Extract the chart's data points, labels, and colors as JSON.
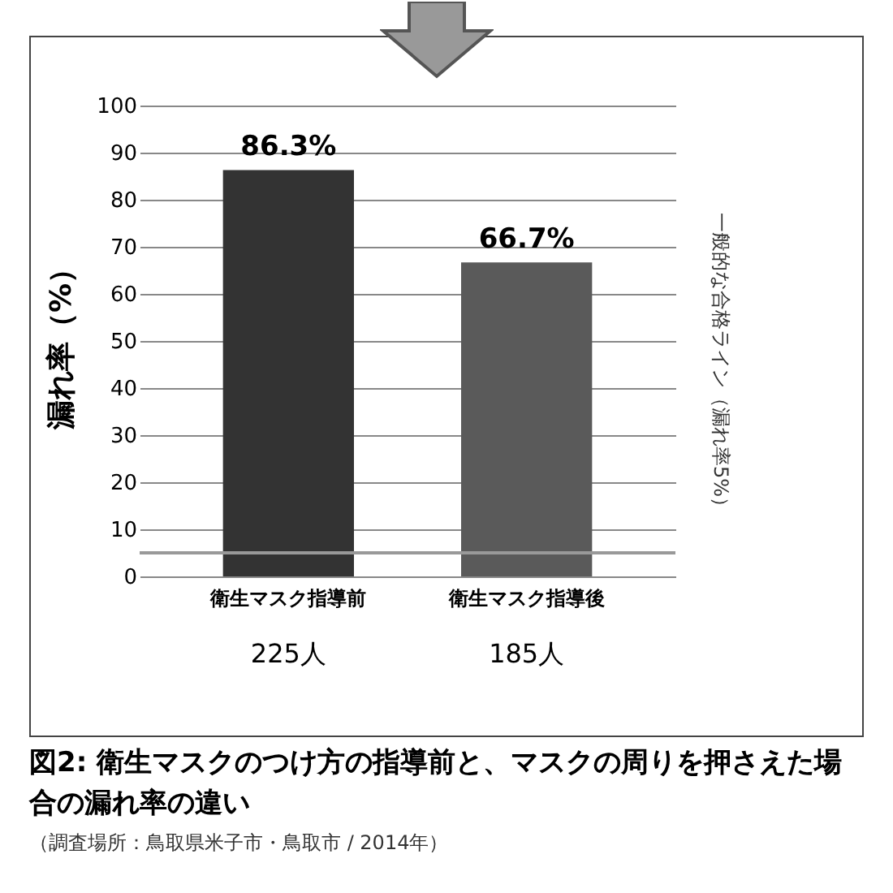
{
  "chart_data": {
    "type": "bar",
    "title": "図2: 衛生マスクのつけ方の指導前と、マスクの周りを押さえた場合の漏れ率の違い",
    "ylabel": "漏れ率（%）",
    "categories": [
      "衛生マスク指導前",
      "衛生マスク指導後"
    ],
    "values": [
      86.3,
      66.7
    ],
    "colors": [
      "#333333",
      "#5a5a5a"
    ],
    "value_labels": [
      "86.3%",
      "66.7%"
    ],
    "ylim": [
      0,
      100
    ],
    "yticks": [
      0,
      10,
      20,
      30,
      40,
      50,
      60,
      70,
      80,
      90,
      100
    ],
    "grid": "y",
    "ref_lines": [
      {
        "axis": "y",
        "value": 5,
        "label": "一般的な合格ライン（漏れ率5%）",
        "color": "#999999"
      }
    ],
    "annotations": [
      "225人",
      "185人",
      "（調査場所：鳥取県米子市・鳥取市 / 2014年）"
    ]
  }
}
